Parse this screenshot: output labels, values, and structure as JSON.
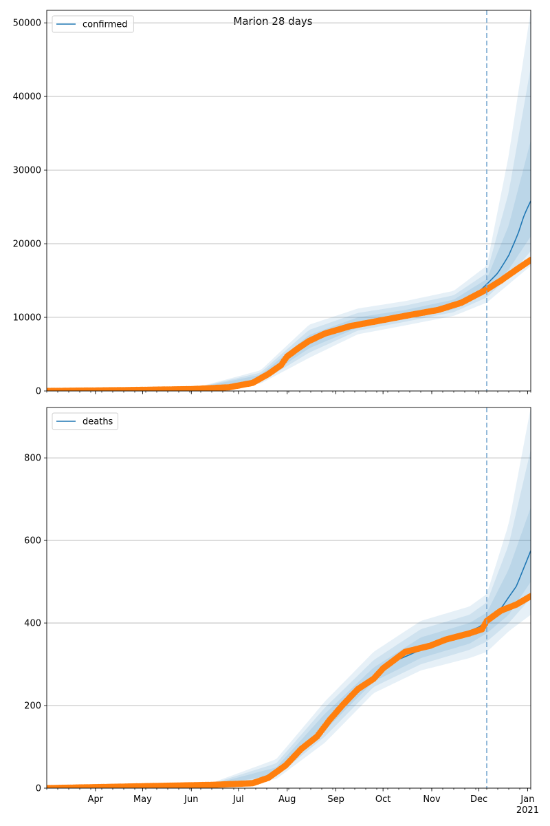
{
  "figure": {
    "title": "Marion 28 days"
  },
  "colors": {
    "model": "#1f77b4",
    "observed": "#ff7f0e",
    "band": "#1f77b4",
    "grid": "#b0b0b0",
    "forecast_line": "#7aa9d1"
  },
  "chart_data": [
    {
      "type": "line",
      "legend": [
        "confirmed"
      ],
      "legend_position": "top-left",
      "grid": "y",
      "forecast_start": "2020-12-06",
      "xlim": [
        "2020-03-01",
        "2021-01-03"
      ],
      "ylim": [
        0,
        51700
      ],
      "yticks": [
        0,
        10000,
        20000,
        30000,
        40000,
        50000
      ],
      "series": [
        {
          "name": "confirmed",
          "style": "line",
          "points": [
            [
              "2020-03-01",
              0
            ],
            [
              "2020-06-01",
              250
            ],
            [
              "2020-06-25",
              500
            ],
            [
              "2020-07-10",
              1100
            ],
            [
              "2020-07-20",
              2200
            ],
            [
              "2020-07-31",
              4200
            ],
            [
              "2020-08-10",
              6200
            ],
            [
              "2020-08-25",
              7900
            ],
            [
              "2020-09-15",
              9200
            ],
            [
              "2020-10-10",
              10200
            ],
            [
              "2020-10-31",
              11000
            ],
            [
              "2020-11-15",
              11800
            ],
            [
              "2020-11-30",
              13300
            ],
            [
              "2020-12-06",
              14500
            ],
            [
              "2020-12-13",
              16000
            ],
            [
              "2020-12-20",
              18400
            ],
            [
              "2020-12-26",
              21400
            ],
            [
              "2020-12-30",
              24000
            ],
            [
              "2021-01-03",
              25800
            ]
          ]
        },
        {
          "name": "",
          "style": "markers",
          "points": [
            [
              "2020-03-01",
              0
            ],
            [
              "2020-04-15",
              100
            ],
            [
              "2020-06-01",
              250
            ],
            [
              "2020-06-25",
              500
            ],
            [
              "2020-07-10",
              1100
            ],
            [
              "2020-07-20",
              2300
            ],
            [
              "2020-07-28",
              3500
            ],
            [
              "2020-08-01",
              4700
            ],
            [
              "2020-08-08",
              5800
            ],
            [
              "2020-08-15",
              6800
            ],
            [
              "2020-08-25",
              7800
            ],
            [
              "2020-09-10",
              8800
            ],
            [
              "2020-09-30",
              9600
            ],
            [
              "2020-10-20",
              10400
            ],
            [
              "2020-11-05",
              11000
            ],
            [
              "2020-11-20",
              12000
            ],
            [
              "2020-12-06",
              13800
            ],
            [
              "2020-12-15",
              15000
            ],
            [
              "2020-12-25",
              16500
            ],
            [
              "2021-01-03",
              17800
            ]
          ]
        }
      ],
      "bands": [
        {
          "lower": [
            [
              "2020-06-01",
              200
            ],
            [
              "2020-07-15",
              1000
            ],
            [
              "2020-08-15",
              4500
            ],
            [
              "2020-09-15",
              7700
            ],
            [
              "2020-10-15",
              8900
            ],
            [
              "2020-11-15",
              10200
            ],
            [
              "2020-12-06",
              12000
            ],
            [
              "2020-12-20",
              14500
            ],
            [
              "2021-01-03",
              17000
            ]
          ],
          "upper": [
            [
              "2020-06-01",
              300
            ],
            [
              "2020-07-15",
              2800
            ],
            [
              "2020-08-15",
              9000
            ],
            [
              "2020-09-15",
              11200
            ],
            [
              "2020-10-15",
              12200
            ],
            [
              "2020-11-15",
              13600
            ],
            [
              "2020-12-06",
              17000
            ],
            [
              "2020-12-20",
              32000
            ],
            [
              "2021-01-03",
              51700
            ]
          ]
        },
        {
          "lower": [
            [
              "2020-06-01",
              220
            ],
            [
              "2020-07-15",
              1200
            ],
            [
              "2020-08-15",
              5200
            ],
            [
              "2020-09-15",
              8200
            ],
            [
              "2020-10-15",
              9400
            ],
            [
              "2020-11-15",
              10700
            ],
            [
              "2020-12-06",
              12700
            ],
            [
              "2020-12-20",
              15500
            ],
            [
              "2021-01-03",
              19000
            ]
          ],
          "upper": [
            [
              "2020-06-01",
              280
            ],
            [
              "2020-07-15",
              2500
            ],
            [
              "2020-08-15",
              8300
            ],
            [
              "2020-09-15",
              10600
            ],
            [
              "2020-10-15",
              11600
            ],
            [
              "2020-11-15",
              13000
            ],
            [
              "2020-12-06",
              16000
            ],
            [
              "2020-12-20",
              27000
            ],
            [
              "2021-01-03",
              44000
            ]
          ]
        },
        {
          "lower": [
            [
              "2020-06-01",
              235
            ],
            [
              "2020-07-15",
              1400
            ],
            [
              "2020-08-15",
              5800
            ],
            [
              "2020-09-15",
              8600
            ],
            [
              "2020-10-15",
              9800
            ],
            [
              "2020-11-15",
              11100
            ],
            [
              "2020-12-06",
              13300
            ],
            [
              "2020-12-20",
              16500
            ],
            [
              "2021-01-03",
              21000
            ]
          ],
          "upper": [
            [
              "2020-06-01",
              265
            ],
            [
              "2020-07-15",
              2200
            ],
            [
              "2020-08-15",
              7600
            ],
            [
              "2020-09-15",
              10000
            ],
            [
              "2020-10-15",
              11000
            ],
            [
              "2020-11-15",
              12400
            ],
            [
              "2020-12-06",
              15200
            ],
            [
              "2020-12-20",
              22500
            ],
            [
              "2021-01-03",
              34000
            ]
          ]
        }
      ]
    },
    {
      "type": "line",
      "legend": [
        "deaths"
      ],
      "legend_position": "top-left",
      "grid": "y",
      "forecast_start": "2020-12-06",
      "xlim": [
        "2020-03-01",
        "2021-01-03"
      ],
      "ylim": [
        0,
        922
      ],
      "yticks": [
        0,
        200,
        400,
        600,
        800
      ],
      "series": [
        {
          "name": "deaths",
          "style": "line",
          "points": [
            [
              "2020-03-01",
              0
            ],
            [
              "2020-06-15",
              8
            ],
            [
              "2020-07-10",
              15
            ],
            [
              "2020-07-25",
              40
            ],
            [
              "2020-08-10",
              90
            ],
            [
              "2020-08-25",
              155
            ],
            [
              "2020-09-10",
              225
            ],
            [
              "2020-09-25",
              270
            ],
            [
              "2020-10-10",
              310
            ],
            [
              "2020-10-31",
              345
            ],
            [
              "2020-11-15",
              365
            ],
            [
              "2020-12-01",
              390
            ],
            [
              "2020-12-06",
              405
            ],
            [
              "2020-12-15",
              435
            ],
            [
              "2020-12-25",
              490
            ],
            [
              "2021-01-03",
              575
            ]
          ]
        },
        {
          "name": "",
          "style": "markers",
          "points": [
            [
              "2020-03-01",
              0
            ],
            [
              "2020-06-15",
              8
            ],
            [
              "2020-07-10",
              12
            ],
            [
              "2020-07-20",
              25
            ],
            [
              "2020-07-31",
              55
            ],
            [
              "2020-08-10",
              95
            ],
            [
              "2020-08-20",
              125
            ],
            [
              "2020-08-28",
              165
            ],
            [
              "2020-09-05",
              200
            ],
            [
              "2020-09-15",
              240
            ],
            [
              "2020-09-25",
              265
            ],
            [
              "2020-10-01",
              290
            ],
            [
              "2020-10-15",
              330
            ],
            [
              "2020-10-31",
              345
            ],
            [
              "2020-11-10",
              360
            ],
            [
              "2020-11-25",
              375
            ],
            [
              "2020-12-03",
              385
            ],
            [
              "2020-12-06",
              405
            ],
            [
              "2020-12-15",
              430
            ],
            [
              "2020-12-25",
              445
            ],
            [
              "2021-01-03",
              465
            ]
          ]
        }
      ],
      "bands": [
        {
          "lower": [
            [
              "2020-06-15",
              4
            ],
            [
              "2020-07-25",
              22
            ],
            [
              "2020-08-25",
              110
            ],
            [
              "2020-09-25",
              230
            ],
            [
              "2020-10-25",
              285
            ],
            [
              "2020-11-25",
              315
            ],
            [
              "2020-12-06",
              330
            ],
            [
              "2020-12-20",
              380
            ],
            [
              "2021-01-03",
              420
            ]
          ],
          "upper": [
            [
              "2020-06-15",
              14
            ],
            [
              "2020-07-25",
              70
            ],
            [
              "2020-08-25",
              210
            ],
            [
              "2020-09-25",
              330
            ],
            [
              "2020-10-25",
              405
            ],
            [
              "2020-11-25",
              440
            ],
            [
              "2020-12-06",
              470
            ],
            [
              "2020-12-20",
              640
            ],
            [
              "2021-01-03",
              922
            ]
          ]
        },
        {
          "lower": [
            [
              "2020-06-15",
              5
            ],
            [
              "2020-07-25",
              28
            ],
            [
              "2020-08-25",
              125
            ],
            [
              "2020-09-25",
              245
            ],
            [
              "2020-10-25",
              300
            ],
            [
              "2020-11-25",
              335
            ],
            [
              "2020-12-06",
              355
            ],
            [
              "2020-12-20",
              400
            ],
            [
              "2021-01-03",
              460
            ]
          ],
          "upper": [
            [
              "2020-06-15",
              12
            ],
            [
              "2020-07-25",
              60
            ],
            [
              "2020-08-25",
              195
            ],
            [
              "2020-09-25",
              310
            ],
            [
              "2020-10-25",
              385
            ],
            [
              "2020-11-25",
              420
            ],
            [
              "2020-12-06",
              450
            ],
            [
              "2020-12-20",
              590
            ],
            [
              "2021-01-03",
              820
            ]
          ]
        },
        {
          "lower": [
            [
              "2020-06-15",
              6
            ],
            [
              "2020-07-25",
              33
            ],
            [
              "2020-08-25",
              140
            ],
            [
              "2020-09-25",
              258
            ],
            [
              "2020-10-25",
              315
            ],
            [
              "2020-11-25",
              350
            ],
            [
              "2020-12-06",
              375
            ],
            [
              "2020-12-20",
              420
            ],
            [
              "2021-01-03",
              500
            ]
          ],
          "upper": [
            [
              "2020-06-15",
              10
            ],
            [
              "2020-07-25",
              50
            ],
            [
              "2020-08-25",
              180
            ],
            [
              "2020-09-25",
              292
            ],
            [
              "2020-10-25",
              365
            ],
            [
              "2020-11-25",
              400
            ],
            [
              "2020-12-06",
              425
            ],
            [
              "2020-12-20",
              530
            ],
            [
              "2021-01-03",
              680
            ]
          ]
        }
      ]
    }
  ],
  "xaxis": {
    "ticks": [
      {
        "date": "2020-04-01",
        "label": "Apr"
      },
      {
        "date": "2020-05-01",
        "label": "May"
      },
      {
        "date": "2020-06-01",
        "label": "Jun"
      },
      {
        "date": "2020-07-01",
        "label": "Jul"
      },
      {
        "date": "2020-08-01",
        "label": "Aug"
      },
      {
        "date": "2020-09-01",
        "label": "Sep"
      },
      {
        "date": "2020-10-01",
        "label": "Oct"
      },
      {
        "date": "2020-11-01",
        "label": "Nov"
      },
      {
        "date": "2020-12-01",
        "label": "Dec"
      },
      {
        "date": "2021-01-01",
        "label": "Jan",
        "sublabel": "2021"
      }
    ]
  }
}
